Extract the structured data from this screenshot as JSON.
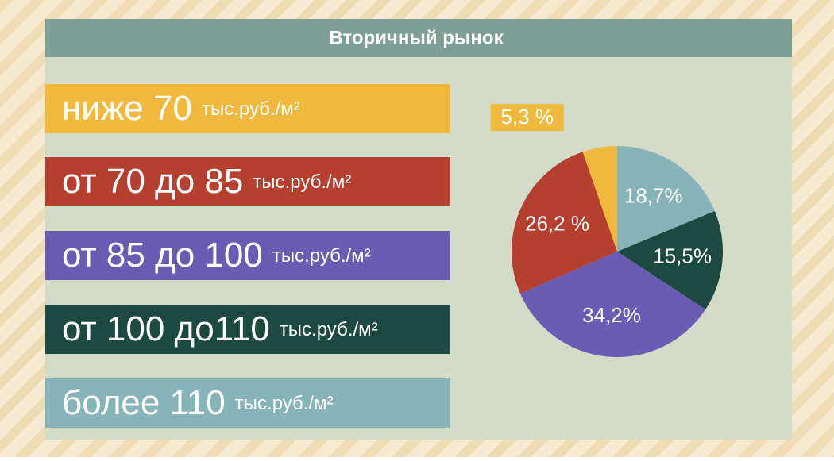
{
  "chart_data": {
    "type": "pie",
    "title": "Вторичный рынок",
    "categories": [
      "ниже 70",
      "от 70 до 85",
      "от 85 до 100",
      "от 100 до110",
      "более 110"
    ],
    "unit": "тыс.руб./м²",
    "values": [
      5.3,
      26.2,
      34.2,
      15.5,
      18.7
    ],
    "value_labels": [
      "5,3 %",
      "26,2 %",
      "34,2%",
      "15,5%",
      "18,7%"
    ],
    "colors": [
      "#f0b93e",
      "#b5402f",
      "#6a5bb3",
      "#1d4a40",
      "#86b4b8"
    ],
    "startangle": 90,
    "counterclock": true
  }
}
